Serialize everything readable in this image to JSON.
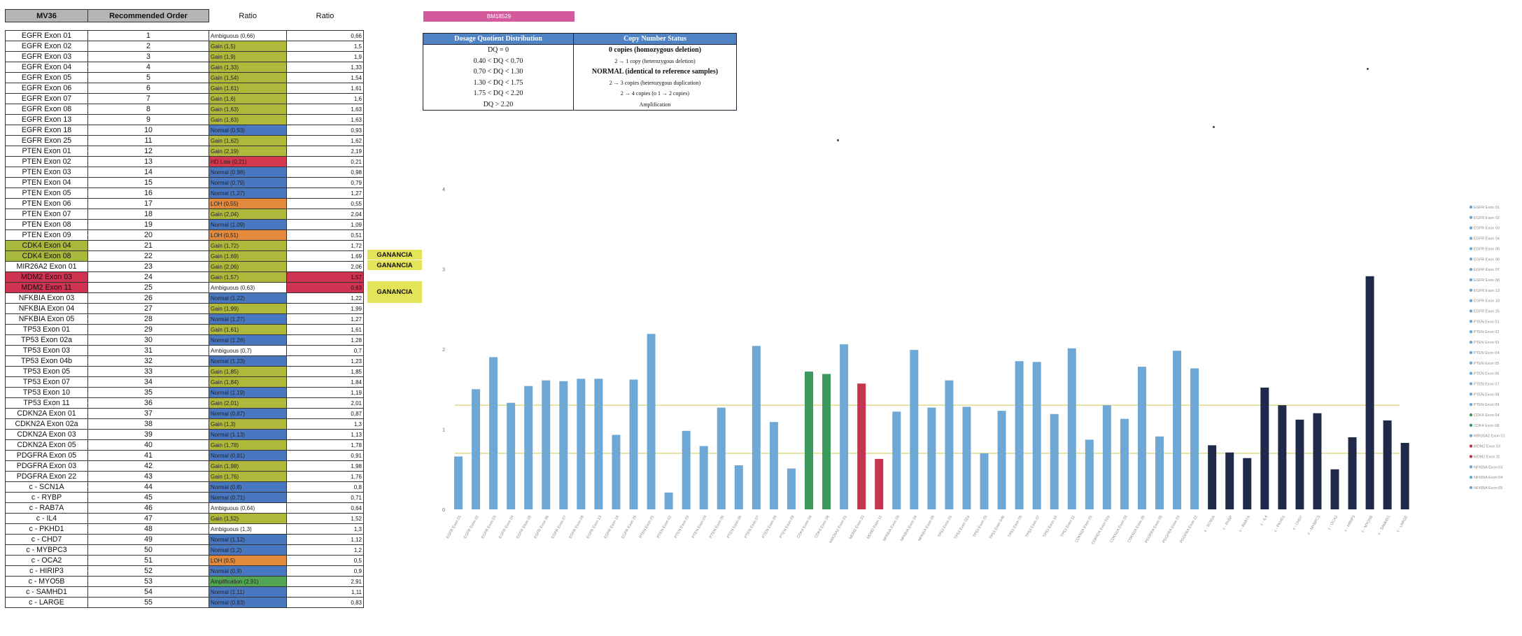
{
  "table": {
    "headers": [
      "MV36",
      "Recommended Order",
      "Ratio",
      "Ratio"
    ],
    "rows": [
      {
        "gene": "EGFR Exon 01",
        "order": "1",
        "status": "Ambiguous (0,66)",
        "ratio": "0,66",
        "s": "amb"
      },
      {
        "gene": "EGFR Exon 02",
        "order": "2",
        "status": "Gain (1,5)",
        "ratio": "1,5",
        "s": "gain"
      },
      {
        "gene": "EGFR Exon 03",
        "order": "3",
        "status": "Gain (1,9)",
        "ratio": "1,9",
        "s": "gain"
      },
      {
        "gene": "EGFR Exon 04",
        "order": "4",
        "status": "Gain (1,33)",
        "ratio": "1,33",
        "s": "gain"
      },
      {
        "gene": "EGFR Exon 05",
        "order": "5",
        "status": "Gain (1,54)",
        "ratio": "1,54",
        "s": "gain"
      },
      {
        "gene": "EGFR Exon 06",
        "order": "6",
        "status": "Gain (1,61)",
        "ratio": "1,61",
        "s": "gain"
      },
      {
        "gene": "EGFR Exon 07",
        "order": "7",
        "status": "Gain (1,6)",
        "ratio": "1,6",
        "s": "gain"
      },
      {
        "gene": "EGFR Exon 08",
        "order": "8",
        "status": "Gain (1,63)",
        "ratio": "1,63",
        "s": "gain"
      },
      {
        "gene": "EGFR Exon 13",
        "order": "9",
        "status": "Gain (1,63)",
        "ratio": "1,63",
        "s": "gain"
      },
      {
        "gene": "EGFR Exon 18",
        "order": "10",
        "status": "Normal (0,93)",
        "ratio": "0,93",
        "s": "norm"
      },
      {
        "gene": "EGFR Exon 25",
        "order": "11",
        "status": "Gain (1,62)",
        "ratio": "1,62",
        "s": "gain"
      },
      {
        "gene": "PTEN Exon 01",
        "order": "12",
        "status": "Gain (2,19)",
        "ratio": "2,19",
        "s": "gain"
      },
      {
        "gene": "PTEN Exon 02",
        "order": "13",
        "status": "HD Low (0,21)",
        "ratio": "0,21",
        "s": "del"
      },
      {
        "gene": "PTEN Exon 03",
        "order": "14",
        "status": "Normal (0,98)",
        "ratio": "0,98",
        "s": "norm"
      },
      {
        "gene": "PTEN Exon 04",
        "order": "15",
        "status": "Normal (0,79)",
        "ratio": "0,79",
        "s": "norm"
      },
      {
        "gene": "PTEN Exon 05",
        "order": "16",
        "status": "Normal (1,27)",
        "ratio": "1,27",
        "s": "norm"
      },
      {
        "gene": "PTEN Exon 06",
        "order": "17",
        "status": "LOH (0,55)",
        "ratio": "0,55",
        "s": "loh"
      },
      {
        "gene": "PTEN Exon 07",
        "order": "18",
        "status": "Gain (2,04)",
        "ratio": "2,04",
        "s": "gain"
      },
      {
        "gene": "PTEN Exon 08",
        "order": "19",
        "status": "Normal (1,09)",
        "ratio": "1,09",
        "s": "norm"
      },
      {
        "gene": "PTEN Exon 09",
        "order": "20",
        "status": "LOH (0,51)",
        "ratio": "0,51",
        "s": "loh"
      },
      {
        "gene": "CDK4 Exon 04",
        "order": "21",
        "status": "Gain (1,72)",
        "ratio": "1,72",
        "s": "gain",
        "g": "green"
      },
      {
        "gene": "CDK4 Exon 08",
        "order": "22",
        "status": "Gain (1,69)",
        "ratio": "1,69",
        "s": "gain",
        "g": "green"
      },
      {
        "gene": "MIR26A2 Exon 01",
        "order": "23",
        "status": "Gain (2,06)",
        "ratio": "2,06",
        "s": "gain"
      },
      {
        "gene": "MDM2 Exon 03",
        "order": "24",
        "status": "Gain (1,57)",
        "ratio": "1,57",
        "s": "gain",
        "g": "red",
        "v": "red"
      },
      {
        "gene": "MDM2 Exon 11",
        "order": "25",
        "status": "Ambiguous (0,63)",
        "ratio": "0,63",
        "s": "amb",
        "g": "red",
        "v": "red"
      },
      {
        "gene": "NFKBIA Exon 03",
        "order": "26",
        "status": "Normal (1,22)",
        "ratio": "1,22",
        "s": "norm"
      },
      {
        "gene": "NFKBIA Exon 04",
        "order": "27",
        "status": "Gain (1,99)",
        "ratio": "1,99",
        "s": "gain"
      },
      {
        "gene": "NFKBIA Exon 05",
        "order": "28",
        "status": "Normal (1,27)",
        "ratio": "1,27",
        "s": "norm"
      },
      {
        "gene": "TP53 Exon 01",
        "order": "29",
        "status": "Gain (1,61)",
        "ratio": "1,61",
        "s": "gain"
      },
      {
        "gene": "TP53 Exon 02a",
        "order": "30",
        "status": "Normal (1,28)",
        "ratio": "1,28",
        "s": "norm"
      },
      {
        "gene": "TP53 Exon 03",
        "order": "31",
        "status": "Ambiguous (0,7)",
        "ratio": "0,7",
        "s": "amb"
      },
      {
        "gene": "TP53 Exon 04b",
        "order": "32",
        "status": "Normal (1,23)",
        "ratio": "1,23",
        "s": "norm"
      },
      {
        "gene": "TP53 Exon 05",
        "order": "33",
        "status": "Gain (1,85)",
        "ratio": "1,85",
        "s": "gain"
      },
      {
        "gene": "TP53 Exon 07",
        "order": "34",
        "status": "Gain (1,84)",
        "ratio": "1,84",
        "s": "gain"
      },
      {
        "gene": "TP53 Exon 10",
        "order": "35",
        "status": "Normal (1,19)",
        "ratio": "1,19",
        "s": "norm"
      },
      {
        "gene": "TP53 Exon 11",
        "order": "36",
        "status": "Gain (2,01)",
        "ratio": "2,01",
        "s": "gain"
      },
      {
        "gene": "CDKN2A Exon 01",
        "order": "37",
        "status": "Normal (0,87)",
        "ratio": "0,87",
        "s": "norm"
      },
      {
        "gene": "CDKN2A Exon 02a",
        "order": "38",
        "status": "Gain (1,3)",
        "ratio": "1,3",
        "s": "gain"
      },
      {
        "gene": "CDKN2A Exon 03",
        "order": "39",
        "status": "Normal (1,13)",
        "ratio": "1,13",
        "s": "norm"
      },
      {
        "gene": "CDKN2A Exon 05",
        "order": "40",
        "status": "Gain (1,78)",
        "ratio": "1,78",
        "s": "gain"
      },
      {
        "gene": "PDGFRA Exon 05",
        "order": "41",
        "status": "Normal (0,91)",
        "ratio": "0,91",
        "s": "norm"
      },
      {
        "gene": "PDGFRA Exon 03",
        "order": "42",
        "status": "Gain (1,98)",
        "ratio": "1,98",
        "s": "gain"
      },
      {
        "gene": "PDGFRA Exon 22",
        "order": "43",
        "status": "Gain (1,76)",
        "ratio": "1,76",
        "s": "gain"
      },
      {
        "gene": "c - SCN1A",
        "order": "44",
        "status": "Normal (0,8)",
        "ratio": "0,8",
        "s": "norm"
      },
      {
        "gene": "c - RYBP",
        "order": "45",
        "status": "Normal (0,71)",
        "ratio": "0,71",
        "s": "norm"
      },
      {
        "gene": "c - RAB7A",
        "order": "46",
        "status": "Ambiguous (0,64)",
        "ratio": "0,64",
        "s": "amb"
      },
      {
        "gene": "c - IL4",
        "order": "47",
        "status": "Gain (1,52)",
        "ratio": "1,52",
        "s": "gain"
      },
      {
        "gene": "c - PKHD1",
        "order": "48",
        "status": "Ambiguous (1,3)",
        "ratio": "1,3",
        "s": "amb"
      },
      {
        "gene": "c - CHD7",
        "order": "49",
        "status": "Normal (1,12)",
        "ratio": "1,12",
        "s": "norm"
      },
      {
        "gene": "c - MYBPC3",
        "order": "50",
        "status": "Normal (1,2)",
        "ratio": "1,2",
        "s": "norm"
      },
      {
        "gene": "c - OCA2",
        "order": "51",
        "status": "LOH (0,5)",
        "ratio": "0,5",
        "s": "loh"
      },
      {
        "gene": "c - HIRIP3",
        "order": "52",
        "status": "Normal (0,9)",
        "ratio": "0,9",
        "s": "norm"
      },
      {
        "gene": "c - MYO5B",
        "order": "53",
        "status": "Amplification (2,91)",
        "ratio": "2,91",
        "s": "amp"
      },
      {
        "gene": "c - SAMHD1",
        "order": "54",
        "status": "Normal (1,11)",
        "ratio": "1,11",
        "s": "norm"
      },
      {
        "gene": "c - LARGE",
        "order": "55",
        "status": "Normal (0,83)",
        "ratio": "0,83",
        "s": "norm"
      }
    ],
    "ganancia_label": "GANANCIA"
  },
  "sample_label": "BM18529",
  "legend": {
    "headers": [
      "Dosage Quotient Distribution",
      "Copy Number Status"
    ],
    "rows": [
      {
        "range": "DQ = 0",
        "status": "0 copies (homozygous deletion)",
        "bold": true
      },
      {
        "range": "0.40 < DQ < 0.70",
        "status": "2 → 1 copy (heterozygous deletion)",
        "bold": false
      },
      {
        "range": "0.70 < DQ < 1.30",
        "status": "NORMAL (identical to reference samples)",
        "bold": true
      },
      {
        "range": "1.30 < DQ < 1.75",
        "status": "2 → 3 copies (heterozygous duplication)",
        "bold": false
      },
      {
        "range": "1.75 < DQ < 2.20",
        "status": "2 → 4 copies (o 1 → 2 copies)",
        "bold": false
      },
      {
        "range": "DQ > 2.20",
        "status": "Amplification",
        "bold": false
      }
    ]
  },
  "chart_data": {
    "type": "bar",
    "ylim": [
      0,
      4
    ],
    "yticks": [
      "0",
      "1",
      "2",
      "3",
      "4"
    ],
    "reference_lines": [
      0.7,
      1.3
    ],
    "colors": {
      "blue": "#6fa8d4",
      "green": "#3d9a5c",
      "red": "#c7344f",
      "navy": "#1f2a4a",
      "line": "#e3d98a"
    },
    "categories": [
      "EGFR Exon 01",
      "EGFR Exon 02",
      "EGFR Exon 03",
      "EGFR Exon 04",
      "EGFR Exon 05",
      "EGFR Exon 06",
      "EGFR Exon 07",
      "EGFR Exon 08",
      "EGFR Exon 13",
      "EGFR Exon 18",
      "EGFR Exon 25",
      "PTEN Exon 01",
      "PTEN Exon 02",
      "PTEN Exon 03",
      "PTEN Exon 04",
      "PTEN Exon 05",
      "PTEN Exon 06",
      "PTEN Exon 07",
      "PTEN Exon 08",
      "PTEN Exon 09",
      "CDK4 Exon 04",
      "CDK4 Exon 08",
      "MIR26A2 Exon 01",
      "MDM2 Exon 03",
      "MDM2 Exon 11",
      "NFKBIA Exon 03",
      "NFKBIA Exon 04",
      "NFKBIA Exon 05",
      "TP53 Exon 01",
      "TP53 Exon 02a",
      "TP53 Exon 03",
      "TP53 Exon 04b",
      "TP53 Exon 05",
      "TP53 Exon 07",
      "TP53 Exon 10",
      "TP53 Exon 11",
      "CDKN2A Exon 01",
      "CDKN2A Exon 02a",
      "CDKN2A Exon 03",
      "CDKN2A Exon 05",
      "PDGFRA Exon 05",
      "PDGFRA Exon 03",
      "PDGFRA Exon 22",
      "c - SCN1A",
      "c - RYBP",
      "c - RAB7A",
      "c - IL4",
      "c - PKHD1",
      "c - CHD7",
      "c - MYBPC3",
      "c - OCA2",
      "c - HIRIP3",
      "c - MYO5B",
      "c - SAMHD1",
      "c - LARGE"
    ],
    "values": [
      0.66,
      1.5,
      1.9,
      1.33,
      1.54,
      1.61,
      1.6,
      1.63,
      1.63,
      0.93,
      1.62,
      2.19,
      0.21,
      0.98,
      0.79,
      1.27,
      0.55,
      2.04,
      1.09,
      0.51,
      1.72,
      1.69,
      2.06,
      1.57,
      0.63,
      1.22,
      1.99,
      1.27,
      1.61,
      1.28,
      0.7,
      1.23,
      1.85,
      1.84,
      1.19,
      2.01,
      0.87,
      1.3,
      1.13,
      1.78,
      0.91,
      1.98,
      1.76,
      0.8,
      0.71,
      0.64,
      1.52,
      1.3,
      1.12,
      1.2,
      0.5,
      0.9,
      2.91,
      1.11,
      0.83
    ],
    "bar_colors": [
      "blue",
      "blue",
      "blue",
      "blue",
      "blue",
      "blue",
      "blue",
      "blue",
      "blue",
      "blue",
      "blue",
      "blue",
      "blue",
      "blue",
      "blue",
      "blue",
      "blue",
      "blue",
      "blue",
      "blue",
      "green",
      "green",
      "blue",
      "red",
      "red",
      "blue",
      "blue",
      "blue",
      "blue",
      "blue",
      "blue",
      "blue",
      "blue",
      "blue",
      "blue",
      "blue",
      "blue",
      "blue",
      "blue",
      "blue",
      "blue",
      "blue",
      "blue",
      "navy",
      "navy",
      "navy",
      "navy",
      "navy",
      "navy",
      "navy",
      "navy",
      "navy",
      "navy",
      "navy",
      "navy"
    ],
    "legend": [
      "EGFR Exon 01",
      "EGFR Exon 02",
      "EGFR Exon 03",
      "EGFR Exon 04",
      "EGFR Exon 05",
      "EGFR Exon 06",
      "EGFR Exon 07",
      "EGFR Exon 08",
      "EGFR Exon 13",
      "EGFR Exon 18",
      "EGFR Exon 25",
      "PTEN Exon 01",
      "PTEN Exon 02",
      "PTEN Exon 03",
      "PTEN Exon 04",
      "PTEN Exon 05",
      "PTEN Exon 06",
      "PTEN Exon 07",
      "PTEN Exon 08",
      "PTEN Exon 09",
      "CDK4 Exon 04",
      "CDK4 Exon 08",
      "MIR26A2 Exon 01",
      "MDM2 Exon 03",
      "MDM2 Exon 11",
      "NFKBIA Exon 03",
      "NFKBIA Exon 04",
      "NFKBIA Exon 05"
    ],
    "legend_placement": "right"
  }
}
